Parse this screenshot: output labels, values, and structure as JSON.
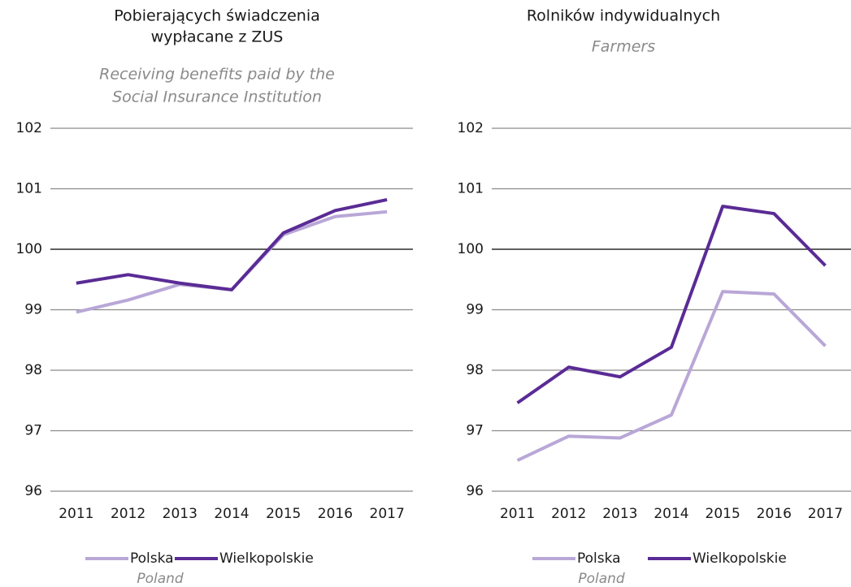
{
  "chart_data": [
    {
      "type": "line",
      "title": [
        "Pobierających świadczenia",
        "wypłacane z ZUS"
      ],
      "subtitle": [
        "Receiving benefits paid by the",
        "Social Insurance Institution"
      ],
      "categories": [
        "2011",
        "2012",
        "2013",
        "2014",
        "2015",
        "2016",
        "2017"
      ],
      "series": [
        {
          "name": "Polska",
          "color": "#b9a7d7",
          "values": [
            98.96,
            99.16,
            99.42,
            99.33,
            100.24,
            100.54,
            100.62
          ]
        },
        {
          "name": "Wielkopolskie",
          "color": "#5a2b95",
          "values": [
            99.44,
            99.58,
            99.44,
            99.33,
            100.27,
            100.64,
            100.82
          ]
        }
      ],
      "legend_note": "Poland",
      "ylim": [
        96,
        102
      ],
      "yticks": [
        96,
        97,
        98,
        99,
        100,
        101,
        102
      ],
      "grid": true,
      "reference_line": 100
    },
    {
      "type": "line",
      "title": [
        "Rolników indywidualnych"
      ],
      "subtitle": [
        "Farmers"
      ],
      "categories": [
        "2011",
        "2012",
        "2013",
        "2014",
        "2015",
        "2016",
        "2017"
      ],
      "series": [
        {
          "name": "Polska",
          "color": "#b9a7d7",
          "values": [
            96.51,
            96.91,
            96.88,
            97.26,
            99.3,
            99.26,
            98.4
          ]
        },
        {
          "name": "Wielkopolskie",
          "color": "#5a2b95",
          "values": [
            97.46,
            98.05,
            97.89,
            98.38,
            100.71,
            100.59,
            99.73
          ]
        }
      ],
      "legend_note": "Poland",
      "ylim": [
        96,
        102
      ],
      "yticks": [
        96,
        97,
        98,
        99,
        100,
        101,
        102
      ],
      "grid": true,
      "reference_line": 100
    }
  ]
}
